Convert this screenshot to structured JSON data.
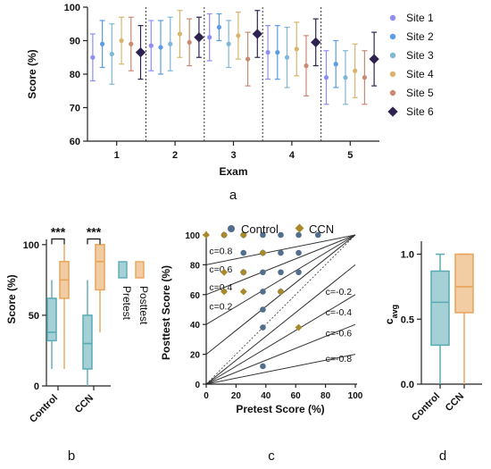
{
  "panel_labels": {
    "a": "a",
    "b": "b",
    "c": "c",
    "d": "d"
  },
  "colors": {
    "site1": "#8e8ef2",
    "site2": "#5c9be6",
    "site3": "#7fb7d6",
    "site4": "#d9b46e",
    "site5": "#c98a72",
    "site6": "#2e2350",
    "pretest": "#5aaab5",
    "posttest": "#e8a45a",
    "control_point": "#526e8c",
    "ccn_point": "#a88a2a",
    "axis": "#222222"
  },
  "chart_data": [
    {
      "id": "a",
      "type": "scatter",
      "title": "",
      "xlabel": "Exam",
      "ylabel": "Score (%)",
      "ylim": [
        60,
        100
      ],
      "yticks": [
        60,
        70,
        80,
        90,
        100
      ],
      "categories": [
        "1",
        "2",
        "3",
        "4",
        "5"
      ],
      "legend": "right",
      "series": [
        {
          "name": "Site 1",
          "values": [
            85,
            88.5,
            91,
            86.5,
            79
          ],
          "err": [
            7,
            7.5,
            7,
            8,
            8
          ]
        },
        {
          "name": "Site 2",
          "values": [
            89,
            88,
            94,
            86.5,
            83
          ],
          "err": [
            7,
            8,
            4,
            8,
            7
          ]
        },
        {
          "name": "Site 3",
          "values": [
            86,
            89,
            89,
            85,
            79
          ],
          "err": [
            9,
            8,
            7,
            9,
            8
          ]
        },
        {
          "name": "Site 4",
          "values": [
            90,
            92,
            91.5,
            87.5,
            81
          ],
          "err": [
            7,
            7,
            7,
            8,
            8
          ]
        },
        {
          "name": "Site 5",
          "values": [
            89,
            89.5,
            84.5,
            82.5,
            79
          ],
          "err": [
            8,
            7,
            8,
            9,
            8
          ]
        },
        {
          "name": "Site 6",
          "values": [
            86.5,
            91,
            92,
            89.5,
            84.5
          ],
          "err": [
            8,
            6,
            7,
            7,
            8
          ]
        }
      ]
    },
    {
      "id": "b",
      "type": "box",
      "ylabel": "Score (%)",
      "ylim": [
        0,
        110
      ],
      "yticks": [
        0,
        50,
        100
      ],
      "categories": [
        "Control",
        "CCN"
      ],
      "legend": [
        "Pretest",
        "Posttest"
      ],
      "significance": [
        "***",
        "***"
      ],
      "boxes": [
        {
          "group": "Control",
          "series": "Pretest",
          "min": 12,
          "q1": 32,
          "median": 38,
          "q3": 62,
          "max": 75
        },
        {
          "group": "Control",
          "series": "Posttest",
          "min": 12,
          "q1": 62,
          "median": 75,
          "q3": 88,
          "max": 100
        },
        {
          "group": "CCN",
          "series": "Pretest",
          "min": 0,
          "q1": 12,
          "median": 30,
          "q3": 50,
          "max": 75
        },
        {
          "group": "CCN",
          "series": "Posttest",
          "min": 38,
          "q1": 68,
          "median": 88,
          "q3": 100,
          "max": 100
        }
      ]
    },
    {
      "id": "c",
      "type": "scatter",
      "xlabel": "Pretest Score (%)",
      "ylabel": "Posttest Score (%)",
      "xlim": [
        0,
        100
      ],
      "ylim": [
        0,
        100
      ],
      "xticks": [
        0,
        20,
        40,
        60,
        80,
        100
      ],
      "yticks": [
        0,
        20,
        40,
        60,
        80,
        100
      ],
      "legend": "top",
      "series": [
        {
          "name": "Control",
          "x": [
            12,
            25,
            38,
            50,
            62,
            75,
            25,
            38,
            50,
            62,
            25,
            38,
            50,
            62,
            38,
            50,
            38,
            38,
            38
          ],
          "y": [
            100,
            100,
            100,
            100,
            100,
            100,
            88,
            88,
            88,
            88,
            75,
            75,
            75,
            75,
            62,
            62,
            50,
            38,
            12
          ]
        },
        {
          "name": "CCN",
          "x": [
            0,
            12,
            25,
            12,
            25,
            38,
            12,
            25,
            50,
            62
          ],
          "y": [
            100,
            100,
            100,
            75,
            75,
            88,
            62,
            62,
            62,
            38
          ]
        }
      ],
      "reference_lines": [
        {
          "label": "c=0.8",
          "c": 0.8
        },
        {
          "label": "c=0.6",
          "c": 0.6
        },
        {
          "label": "c=0.4",
          "c": 0.4
        },
        {
          "label": "c=0.2",
          "c": 0.2
        },
        {
          "label": "c=-0.2",
          "c": -0.2
        },
        {
          "label": "c=-0.4",
          "c": -0.4
        },
        {
          "label": "c=-0.6",
          "c": -0.6
        },
        {
          "label": "c=-0.8",
          "c": -0.8
        }
      ]
    },
    {
      "id": "d",
      "type": "box",
      "ylabel": "c",
      "ylabel_sub": "avg",
      "ylim": [
        0,
        1.1
      ],
      "yticks": [
        "0.0",
        "0.5",
        "1.0"
      ],
      "categories": [
        "Control",
        "CCN"
      ],
      "boxes": [
        {
          "group": "Control",
          "min": 0,
          "q1": 0.3,
          "median": 0.63,
          "q3": 0.87,
          "max": 1.0
        },
        {
          "group": "CCN",
          "min": 0,
          "q1": 0.55,
          "median": 0.75,
          "q3": 1.0,
          "max": 1.0
        }
      ]
    }
  ]
}
